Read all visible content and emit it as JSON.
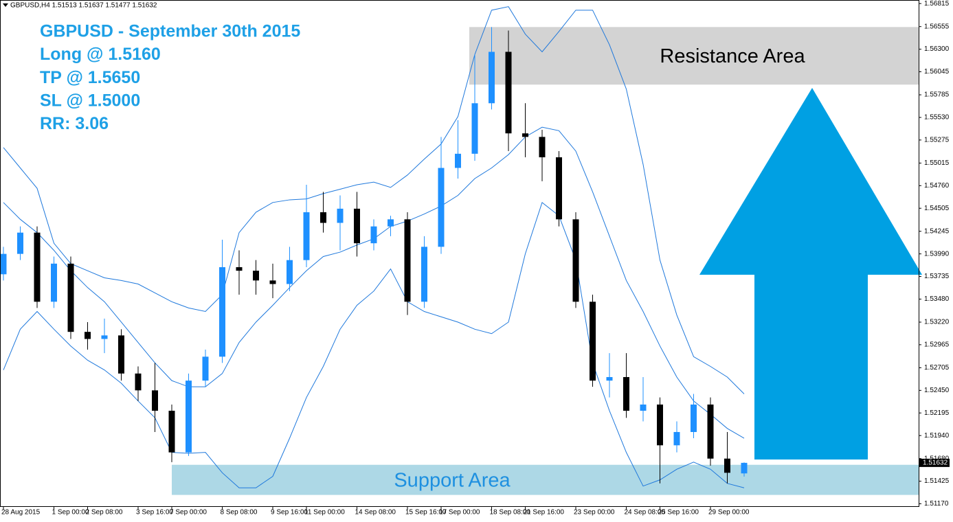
{
  "chart_data": {
    "type": "candlestick",
    "header": "GBPUSD,H4  1.51513 1.51637 1.51477 1.51632",
    "annotations": [
      "GBPUSD - September 30th 2015",
      "Long @ 1.5160",
      "TP @ 1.5650",
      "SL @ 1.5000",
      "RR: 3.06"
    ],
    "zones": [
      {
        "label": "Resistance Area",
        "range": [
          1.559,
          1.5655
        ],
        "color": "#d3d3d3"
      },
      {
        "label": "Support Area",
        "range": [
          1.5127,
          1.5161
        ],
        "color": "#add8e6"
      }
    ],
    "categories": [
      "28 Aug 2015",
      null,
      null,
      "1 Sep 00:00",
      null,
      "2 Sep 08:00",
      null,
      null,
      "3 Sep 16:00",
      null,
      "7 Sep 00:00",
      null,
      null,
      "8 Sep 08:00",
      null,
      null,
      "9 Sep 16:00",
      null,
      "11 Sep 00:00",
      null,
      null,
      "14 Sep 08:00",
      null,
      null,
      "15 Sep 16:00",
      null,
      "17 Sep 00:00",
      null,
      null,
      "18 Sep 08:00",
      null,
      "21 Sep 16:00",
      null,
      null,
      "23 Sep 00:00",
      null,
      null,
      "24 Sep 08:00",
      null,
      "25 Sep 16:00",
      null,
      null,
      "29 Sep 00:00",
      null,
      null
    ],
    "open": [
      1.5376,
      1.5399,
      1.5423,
      1.5345,
      1.5388,
      1.5311,
      1.5303,
      1.5307,
      1.5264,
      1.5245,
      1.5222,
      1.5175,
      1.5256,
      1.5283,
      1.5384,
      1.538,
      1.5369,
      1.5365,
      1.5392,
      1.5446,
      1.5434,
      1.545,
      1.5411,
      1.543,
      1.5438,
      1.5345,
      1.5407,
      1.5496,
      1.5512,
      1.5569,
      1.5627,
      1.5535,
      1.5531,
      1.5508,
      1.5438,
      1.5345,
      1.5256,
      1.526,
      1.5222,
      1.5229,
      1.5183,
      1.5198,
      1.5229,
      1.5168,
      1.51513
    ],
    "high": [
      1.5407,
      1.543,
      1.543,
      1.5396,
      1.5396,
      1.5322,
      1.5326,
      1.5314,
      1.5272,
      1.5276,
      1.5229,
      1.5264,
      1.5291,
      1.5415,
      1.5403,
      1.5392,
      1.5388,
      1.5407,
      1.5477,
      1.5469,
      1.5465,
      1.5469,
      1.5438,
      1.5442,
      1.5446,
      1.5419,
      1.5531,
      1.555,
      1.5624,
      1.5655,
      1.5651,
      1.5569,
      1.5539,
      1.5515,
      1.5446,
      1.5353,
      1.5287,
      1.5287,
      1.526,
      1.5237,
      1.521,
      1.5241,
      1.5237,
      1.5198,
      1.51637
    ],
    "low": [
      1.5369,
      1.5392,
      1.5338,
      1.5338,
      1.5303,
      1.5291,
      1.5287,
      1.5256,
      1.5233,
      1.5198,
      1.5164,
      1.5171,
      1.5249,
      1.5276,
      1.5353,
      1.5353,
      1.5349,
      1.5357,
      1.5384,
      1.5423,
      1.5403,
      1.5396,
      1.5403,
      1.5419,
      1.533,
      1.5338,
      1.5399,
      1.5484,
      1.5504,
      1.5562,
      1.5515,
      1.5508,
      1.5481,
      1.543,
      1.5338,
      1.5249,
      1.5237,
      1.5214,
      1.521,
      1.514,
      1.5175,
      1.5191,
      1.516,
      1.514,
      1.51477
    ],
    "close": [
      1.5399,
      1.5423,
      1.5345,
      1.5388,
      1.5311,
      1.5303,
      1.5307,
      1.5264,
      1.5245,
      1.5222,
      1.5175,
      1.5256,
      1.5283,
      1.5384,
      1.538,
      1.5369,
      1.5365,
      1.5392,
      1.5446,
      1.5434,
      1.545,
      1.5411,
      1.543,
      1.5438,
      1.5345,
      1.5407,
      1.5496,
      1.5512,
      1.5569,
      1.5627,
      1.5535,
      1.5531,
      1.5508,
      1.5438,
      1.5345,
      1.5256,
      1.526,
      1.5222,
      1.5229,
      1.5183,
      1.5198,
      1.5229,
      1.5168,
      1.5152,
      1.51632
    ],
    "up_color": "#1e90ff",
    "down_color": "#000000",
    "lines": [
      {
        "color": "#1e78dc",
        "values": [
          1.5519,
          1.5496,
          1.5473,
          1.5411,
          1.5388,
          1.538,
          1.5372,
          1.5369,
          1.5365,
          1.5355,
          1.5345,
          1.5338,
          1.5334,
          1.5353,
          1.5423,
          1.5446,
          1.5457,
          1.546,
          1.5461,
          1.5467,
          1.5472,
          1.5477,
          1.548,
          1.5474,
          1.5488,
          1.5506,
          1.5523,
          1.5554,
          1.5624,
          1.5674,
          1.5678,
          1.5647,
          1.5627,
          1.565,
          1.5674,
          1.5674,
          1.5635,
          1.5585,
          1.55,
          1.5392,
          1.533,
          1.5283,
          1.5272,
          1.526,
          1.5241
        ]
      },
      {
        "color": "#1e78dc",
        "values": [
          1.5457,
          1.5438,
          1.5423,
          1.5403,
          1.538,
          1.5361,
          1.5345,
          1.5322,
          1.5299,
          1.5276,
          1.5256,
          1.5249,
          1.5249,
          1.5264,
          1.5299,
          1.5322,
          1.5341,
          1.5361,
          1.538,
          1.5396,
          1.5401,
          1.5409,
          1.5416,
          1.543,
          1.5436,
          1.5444,
          1.5453,
          1.5465,
          1.5484,
          1.5496,
          1.5511,
          1.5531,
          1.5542,
          1.5538,
          1.5515,
          1.5469,
          1.5419,
          1.5369,
          1.5334,
          1.5295,
          1.526,
          1.5233,
          1.5218,
          1.5202,
          1.5191
        ]
      },
      {
        "color": "#1e78dc",
        "values": [
          1.5268,
          1.5314,
          1.5334,
          1.5314,
          1.5295,
          1.5279,
          1.5268,
          1.5253,
          1.5233,
          1.5214,
          1.5175,
          1.5174,
          1.5175,
          1.5152,
          1.5135,
          1.5135,
          1.5148,
          1.5191,
          1.5237,
          1.5272,
          1.5314,
          1.5341,
          1.5357,
          1.5382,
          1.5345,
          1.5334,
          1.5328,
          1.5322,
          1.5314,
          1.5309,
          1.5322,
          1.5399,
          1.5457,
          1.5442,
          1.5392,
          1.5276,
          1.5222,
          1.5175,
          1.5137,
          1.5144,
          1.5156,
          1.5164,
          1.5156,
          1.514,
          1.5135
        ]
      }
    ],
    "ylim": [
      1.51135,
      1.56855
    ],
    "yticks": [
      {
        "value": 1.5117,
        "label": "1.51170"
      },
      1.51425,
      {
        "value": 1.5168,
        "label": "1.51680"
      },
      {
        "value": 1.5194,
        "label": "1.51940"
      },
      1.52195,
      {
        "value": 1.5245,
        "label": "1.52450"
      },
      1.52705,
      1.52965,
      {
        "value": 1.5322,
        "label": "1.53220"
      },
      {
        "value": 1.5348,
        "label": "1.53480"
      },
      1.53735,
      {
        "value": 1.5399,
        "label": "1.53990"
      },
      1.54245,
      1.54505,
      {
        "value": 1.5476,
        "label": "1.54760"
      },
      1.55015,
      1.55275,
      {
        "value": 1.5553,
        "label": "1.55530"
      },
      1.55785,
      1.56045,
      {
        "value": 1.563,
        "label": "1.56300"
      },
      1.56555,
      1.56815
    ]
  }
}
